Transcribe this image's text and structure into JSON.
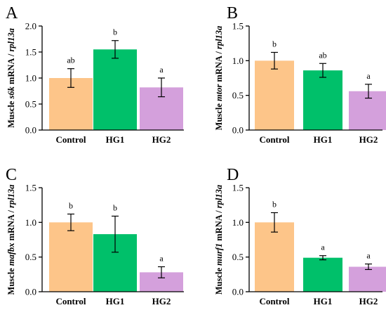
{
  "colors": {
    "Control": "#FDC589",
    "HG1": "#00C06A",
    "HG2": "#D4A0DC"
  },
  "chart_data": [
    {
      "type": "bar",
      "panel": "A",
      "categories": [
        "Control",
        "HG1",
        "HG2"
      ],
      "values": [
        1.0,
        1.55,
        0.82
      ],
      "errors": [
        0.18,
        0.17,
        0.18
      ],
      "significance": [
        "ab",
        "b",
        "a"
      ],
      "ylabel": {
        "prefix": "Muscle ",
        "gene": "s6k",
        "middle": " mRNA / ",
        "ref": "rpl13a"
      },
      "ylim": [
        0,
        2.0
      ],
      "yticks": [
        "0.0",
        "0.5",
        "1.0",
        "1.5",
        "2.0"
      ]
    },
    {
      "type": "bar",
      "panel": "B",
      "categories": [
        "Control",
        "HG1",
        "HG2"
      ],
      "values": [
        1.0,
        0.86,
        0.56
      ],
      "errors": [
        0.12,
        0.1,
        0.1
      ],
      "significance": [
        "b",
        "ab",
        "a"
      ],
      "ylabel": {
        "prefix": "Muscle ",
        "gene": "mtor",
        "middle": " mRNA / ",
        "ref": "rpl13a"
      },
      "ylim": [
        0,
        1.5
      ],
      "yticks": [
        "0.0",
        "0.5",
        "1.0",
        "1.5"
      ]
    },
    {
      "type": "bar",
      "panel": "C",
      "categories": [
        "Control",
        "HG1",
        "HG2"
      ],
      "values": [
        1.0,
        0.83,
        0.28
      ],
      "errors": [
        0.12,
        0.26,
        0.08
      ],
      "significance": [
        "b",
        "b",
        "a"
      ],
      "ylabel": {
        "prefix": "Muscle ",
        "gene": "mafbx",
        "middle": " mRNA / ",
        "ref": "rpl13a"
      },
      "ylim": [
        0,
        1.5
      ],
      "yticks": [
        "0.0",
        "0.5",
        "1.0",
        "1.5"
      ]
    },
    {
      "type": "bar",
      "panel": "D",
      "categories": [
        "Control",
        "HG1",
        "HG2"
      ],
      "values": [
        1.0,
        0.49,
        0.36
      ],
      "errors": [
        0.14,
        0.03,
        0.04
      ],
      "significance": [
        "b",
        "a",
        "a"
      ],
      "ylabel": {
        "prefix": "Muscle ",
        "gene": "murf1",
        "middle": " mRNA / ",
        "ref": "rpl13a"
      },
      "ylim": [
        0,
        1.5
      ],
      "yticks": [
        "0.0",
        "0.5",
        "1.0",
        "1.5"
      ]
    }
  ]
}
